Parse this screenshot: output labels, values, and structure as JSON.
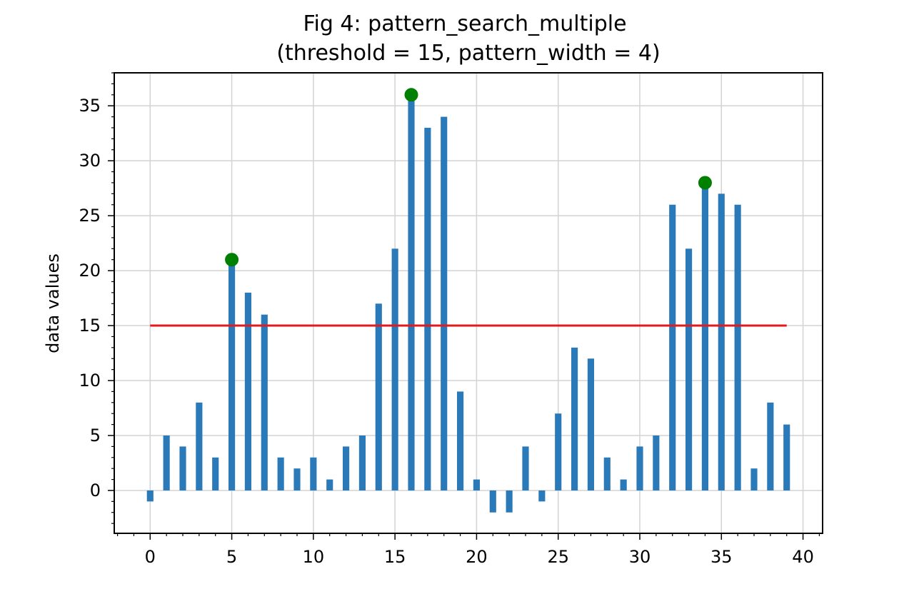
{
  "chart_data": {
    "type": "bar",
    "title_line1": "Fig 4: pattern_search_multiple",
    "title_line2": "(threshold = 15, pattern_width = 4)",
    "xlabel": "",
    "ylabel": "data values",
    "x": [
      0,
      1,
      2,
      3,
      4,
      5,
      6,
      7,
      8,
      9,
      10,
      11,
      12,
      13,
      14,
      15,
      16,
      17,
      18,
      19,
      20,
      21,
      22,
      23,
      24,
      25,
      26,
      27,
      28,
      29,
      30,
      31,
      32,
      33,
      34,
      35,
      36,
      37,
      38,
      39
    ],
    "values": [
      -1,
      5,
      4,
      8,
      3,
      21,
      18,
      16,
      3,
      2,
      3,
      1,
      4,
      5,
      17,
      22,
      36,
      33,
      34,
      9,
      1,
      -2,
      -2,
      4,
      -1,
      7,
      13,
      12,
      3,
      1,
      4,
      5,
      26,
      22,
      28,
      27,
      26,
      2,
      8,
      6
    ],
    "xlim": [
      -2.2,
      41.2
    ],
    "ylim": [
      -3.9,
      38.0
    ],
    "xticks": [
      0,
      5,
      10,
      15,
      20,
      25,
      30,
      35,
      40
    ],
    "yticks": [
      0,
      5,
      10,
      15,
      20,
      25,
      30,
      35
    ],
    "threshold": {
      "value": 15,
      "x_start": 0,
      "x_end": 39,
      "color": "#e31a1c"
    },
    "peaks": [
      {
        "x": 5,
        "y": 21
      },
      {
        "x": 16,
        "y": 36
      },
      {
        "x": 34,
        "y": 28
      }
    ],
    "bar_color": "#2a7ab9",
    "peak_color": "#008000",
    "grid": true,
    "minor_ticks": true
  }
}
